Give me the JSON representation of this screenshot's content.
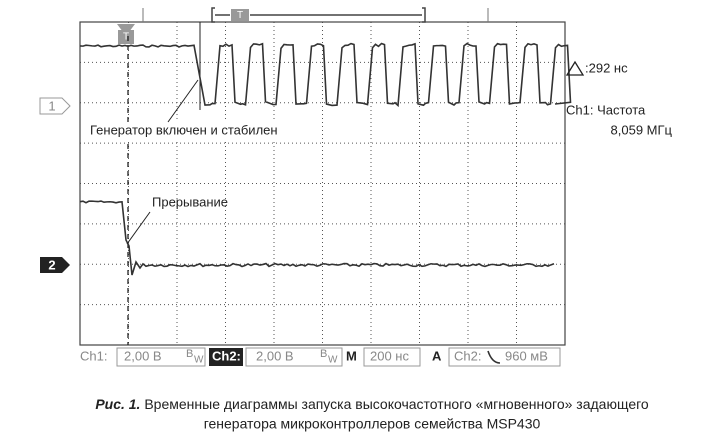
{
  "screen": {
    "trigger_marker": "T",
    "window_marker": "T",
    "channel_markers": [
      "1",
      "2"
    ],
    "delta": ":292 нс",
    "measurement": {
      "label": "Ch1: Частота",
      "value": "8,059 МГц"
    },
    "annotations": [
      "Генератор включен и стабилен",
      "Прерывание"
    ]
  },
  "status_bar": {
    "ch1": {
      "label": "Ch1:",
      "value": "2,00 В",
      "bw": [
        "B",
        "W"
      ]
    },
    "ch2": {
      "label": "Ch2:",
      "value": "2,00 В",
      "bw": [
        "B",
        "W"
      ]
    },
    "timebase": {
      "label": "M",
      "value": "200 нс"
    },
    "trigger": {
      "label": "A",
      "source": "Ch2:",
      "value": "960 мВ"
    }
  },
  "caption": {
    "label": "Рис. 1.",
    "lines": [
      "Временные диаграммы запуска высокочастотного «мгновенного» задающего",
      "генератора микроконтроллеров семейства MSP430"
    ]
  }
}
